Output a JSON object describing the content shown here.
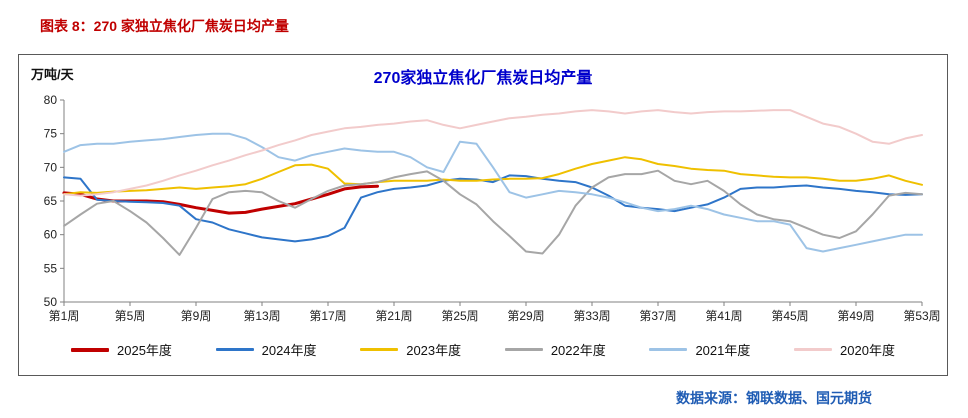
{
  "header": {
    "title": "图表 8：270 家独立焦化厂焦炭日均产量"
  },
  "chart": {
    "title": "270家独立焦化厂焦炭日均产量",
    "unit_label": "万吨/天",
    "source": "数据来源：钢联数据、国元期货"
  },
  "colors": {
    "header_red": "#C00000",
    "title_blue": "#0000CC",
    "source_blue": "#1F5CB4"
  },
  "chart_data": {
    "type": "line",
    "title": "270家独立焦化厂焦炭日均产量",
    "ylabel": "万吨/天",
    "ylim": [
      50,
      80
    ],
    "ytick_step": 5,
    "x_range": [
      1,
      53
    ],
    "x_tick_weeks": [
      1,
      5,
      9,
      13,
      17,
      21,
      25,
      29,
      33,
      37,
      41,
      45,
      49,
      53
    ],
    "x_tick_labels": [
      "第1周",
      "第5周",
      "第9周",
      "第13周",
      "第17周",
      "第21周",
      "第25周",
      "第29周",
      "第33周",
      "第37周",
      "第41周",
      "第45周",
      "第49周",
      "第53周"
    ],
    "grid": false,
    "legend_position": "bottom",
    "series": [
      {
        "name": "2025年度",
        "color": "#C00000",
        "width": 3,
        "values": [
          66.2,
          66.0,
          65.3,
          65.0,
          65.0,
          65.0,
          64.9,
          64.5,
          64.0,
          63.6,
          63.2,
          63.3,
          63.8,
          64.2,
          64.6,
          65.3,
          66.0,
          66.8,
          67.1,
          67.2
        ]
      },
      {
        "name": "2024年度",
        "color": "#2E75C9",
        "width": 2,
        "values": [
          68.5,
          68.3,
          65.2,
          65.0,
          64.9,
          64.8,
          64.7,
          64.3,
          62.3,
          61.8,
          60.8,
          60.2,
          59.6,
          59.3,
          59.0,
          59.3,
          59.8,
          61.0,
          65.5,
          66.3,
          66.8,
          67.0,
          67.3,
          68.0,
          68.3,
          68.2,
          67.8,
          68.8,
          68.7,
          68.3,
          68.0,
          67.8,
          67.0,
          65.8,
          64.3,
          64.0,
          63.8,
          63.5,
          64.0,
          64.5,
          65.5,
          66.8,
          67.0,
          67.0,
          67.2,
          67.3,
          67.0,
          66.8,
          66.5,
          66.3,
          66.0,
          65.9,
          66.0
        ]
      },
      {
        "name": "2023年度",
        "color": "#EFC000",
        "width": 2,
        "values": [
          66.0,
          66.3,
          66.2,
          66.4,
          66.5,
          66.6,
          66.8,
          67.0,
          66.8,
          67.0,
          67.2,
          67.5,
          68.3,
          69.3,
          70.3,
          70.4,
          69.8,
          67.6,
          67.5,
          67.8,
          68.0,
          68.0,
          68.0,
          68.2,
          68.0,
          68.0,
          68.2,
          68.3,
          68.3,
          68.4,
          69.0,
          69.8,
          70.5,
          71.0,
          71.5,
          71.2,
          70.5,
          70.2,
          69.8,
          69.6,
          69.5,
          69.0,
          68.8,
          68.6,
          68.5,
          68.5,
          68.3,
          68.0,
          68.0,
          68.3,
          68.8,
          68.0,
          67.4
        ]
      },
      {
        "name": "2022年度",
        "color": "#A6A6A6",
        "width": 2,
        "values": [
          61.3,
          63.0,
          64.6,
          65.0,
          63.5,
          61.8,
          59.5,
          57.0,
          61.0,
          65.3,
          66.3,
          66.5,
          66.3,
          65.0,
          64.0,
          65.3,
          66.5,
          67.3,
          67.5,
          67.8,
          68.5,
          69.0,
          69.4,
          68.0,
          66.0,
          64.5,
          62.0,
          59.8,
          57.5,
          57.2,
          60.0,
          64.3,
          67.0,
          68.5,
          69.0,
          69.0,
          69.5,
          68.0,
          67.5,
          68.0,
          66.5,
          64.5,
          63.0,
          62.3,
          62.0,
          61.0,
          60.0,
          59.5,
          60.5,
          63.0,
          65.8,
          66.2,
          66.0
        ]
      },
      {
        "name": "2021年度",
        "color": "#9DC3E6",
        "width": 2,
        "values": [
          72.3,
          73.3,
          73.5,
          73.5,
          73.8,
          74.0,
          74.2,
          74.5,
          74.8,
          75.0,
          75.0,
          74.3,
          73.0,
          71.5,
          71.0,
          71.8,
          72.3,
          72.8,
          72.5,
          72.3,
          72.3,
          71.5,
          70.0,
          69.3,
          73.8,
          73.5,
          70.0,
          66.3,
          65.5,
          66.0,
          66.5,
          66.3,
          66.0,
          65.5,
          64.8,
          64.0,
          63.5,
          63.8,
          64.3,
          63.8,
          63.0,
          62.5,
          62.0,
          62.0,
          61.5,
          58.0,
          57.5,
          58.0,
          58.5,
          59.0,
          59.5,
          60.0,
          60.0
        ]
      },
      {
        "name": "2020年度",
        "color": "#F2CBCB",
        "width": 2,
        "values": [
          66.0,
          65.8,
          66.0,
          66.3,
          66.8,
          67.3,
          68.0,
          68.8,
          69.5,
          70.3,
          71.0,
          71.8,
          72.5,
          73.3,
          74.0,
          74.8,
          75.3,
          75.8,
          76.0,
          76.3,
          76.5,
          76.8,
          77.0,
          76.3,
          75.8,
          76.3,
          76.8,
          77.3,
          77.5,
          77.8,
          78.0,
          78.3,
          78.5,
          78.3,
          78.0,
          78.3,
          78.5,
          78.2,
          78.0,
          78.2,
          78.3,
          78.3,
          78.4,
          78.5,
          78.5,
          77.5,
          76.5,
          76.0,
          75.0,
          73.8,
          73.5,
          74.3,
          74.8
        ]
      }
    ]
  }
}
